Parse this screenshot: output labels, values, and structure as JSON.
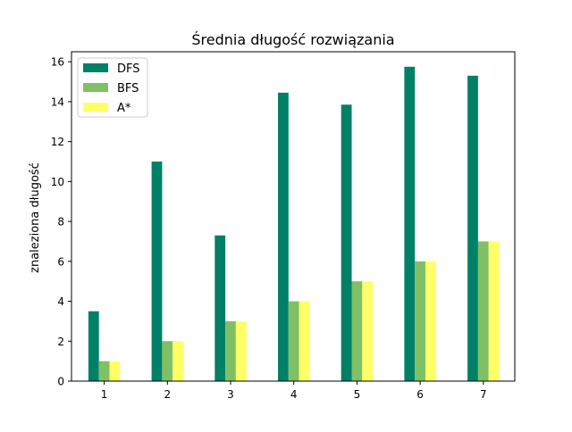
{
  "chart_data": {
    "type": "bar",
    "title": "Średnia długość rozwiązania",
    "xlabel": "",
    "ylabel": "znaleziona długość",
    "categories": [
      "1",
      "2",
      "3",
      "4",
      "5",
      "6",
      "7"
    ],
    "ylim": [
      0,
      16.5
    ],
    "yticks": [
      "0",
      "2",
      "4",
      "6",
      "8",
      "10",
      "12",
      "14",
      "16"
    ],
    "grid": false,
    "legend_position": "top-left",
    "series": [
      {
        "name": "DFS",
        "color": "#008066",
        "values": [
          3.5,
          11.0,
          7.3,
          14.45,
          13.85,
          15.75,
          15.3
        ]
      },
      {
        "name": "BFS",
        "color": "#80c065",
        "values": [
          1,
          2,
          3,
          4,
          5,
          6,
          7
        ]
      },
      {
        "name": "A*",
        "color": "#ffff66",
        "values": [
          1,
          2,
          3,
          4,
          5,
          6,
          7
        ]
      }
    ]
  }
}
